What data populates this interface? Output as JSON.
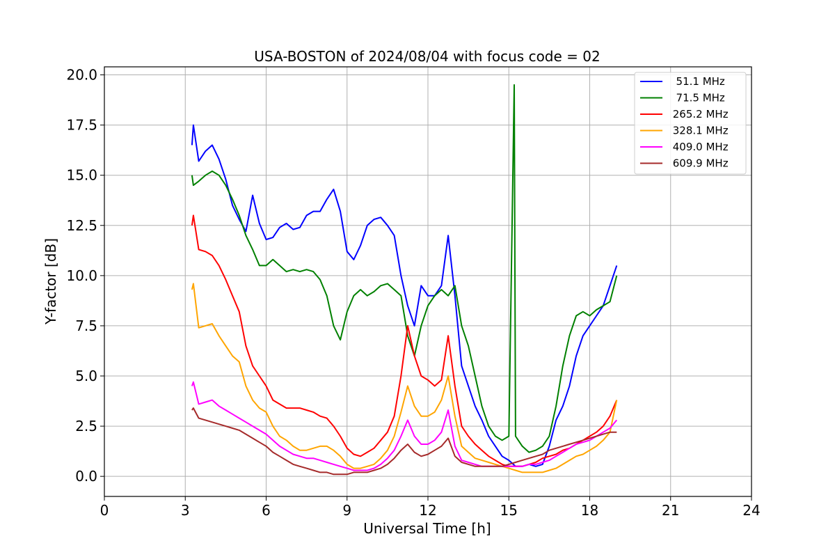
{
  "chart_data": {
    "type": "line",
    "title": "USA-BOSTON of 2024/08/04 with focus code = 02",
    "xlabel": "Universal Time [h]",
    "ylabel": "Y-factor [dB]",
    "xlim": [
      0,
      24
    ],
    "ylim": [
      -1,
      20.4
    ],
    "xticks": [
      0,
      3,
      6,
      9,
      12,
      15,
      18,
      21,
      24
    ],
    "xtick_labels": [
      "0",
      "3",
      "6",
      "9",
      "12",
      "15",
      "18",
      "21",
      "24"
    ],
    "yticks": [
      0,
      2.5,
      5,
      7.5,
      10,
      12.5,
      15,
      17.5,
      20
    ],
    "ytick_labels": [
      "0.0",
      "2.5",
      "5.0",
      "7.5",
      "10.0",
      "12.5",
      "15.0",
      "17.5",
      "20.0"
    ],
    "grid": true,
    "legend_position": "top-right",
    "series": [
      {
        "name": "  51.1 MHz",
        "color": "#0000ff",
        "x": [
          3.25,
          3.3,
          3.5,
          3.75,
          4.0,
          4.25,
          4.5,
          4.75,
          5.0,
          5.25,
          5.5,
          5.75,
          6.0,
          6.25,
          6.5,
          6.75,
          7.0,
          7.25,
          7.5,
          7.75,
          8.0,
          8.25,
          8.5,
          8.75,
          9.0,
          9.25,
          9.5,
          9.75,
          10.0,
          10.25,
          10.5,
          10.75,
          11.0,
          11.25,
          11.5,
          11.75,
          12.0,
          12.25,
          12.5,
          12.75,
          13.0,
          13.25,
          13.5,
          13.75,
          14.0,
          14.25,
          14.5,
          14.75,
          15.0,
          15.25,
          15.5,
          15.75,
          16.0,
          16.25,
          16.5,
          16.75,
          17.0,
          17.25,
          17.5,
          17.75,
          18.0,
          18.25,
          18.5,
          18.75,
          19.0
        ],
        "y": [
          16.5,
          17.5,
          15.7,
          16.2,
          16.5,
          15.8,
          14.8,
          13.5,
          12.8,
          12.2,
          14.0,
          12.6,
          11.8,
          11.9,
          12.4,
          12.6,
          12.3,
          12.4,
          13.0,
          13.2,
          13.2,
          13.8,
          14.3,
          13.2,
          11.2,
          10.8,
          11.5,
          12.5,
          12.8,
          12.9,
          12.5,
          12.0,
          10.0,
          8.5,
          7.5,
          9.5,
          9.0,
          9.0,
          9.5,
          12.0,
          9.0,
          5.5,
          4.5,
          3.5,
          2.8,
          2.0,
          1.5,
          1.0,
          0.8,
          0.5,
          0.5,
          0.6,
          0.5,
          0.6,
          1.5,
          2.8,
          3.5,
          4.5,
          6.0,
          7.0,
          7.5,
          8.0,
          8.5,
          9.5,
          10.5
        ]
      },
      {
        "name": "  71.5 MHz",
        "color": "#008000",
        "x": [
          3.25,
          3.3,
          3.5,
          3.75,
          4.0,
          4.25,
          4.5,
          4.75,
          5.0,
          5.25,
          5.5,
          5.75,
          6.0,
          6.25,
          6.5,
          6.75,
          7.0,
          7.25,
          7.5,
          7.75,
          8.0,
          8.25,
          8.5,
          8.75,
          9.0,
          9.25,
          9.5,
          9.75,
          10.0,
          10.25,
          10.5,
          10.75,
          11.0,
          11.25,
          11.5,
          11.75,
          12.0,
          12.25,
          12.5,
          12.75,
          13.0,
          13.25,
          13.5,
          13.75,
          14.0,
          14.25,
          14.5,
          14.75,
          15.0,
          15.2,
          15.25,
          15.5,
          15.75,
          16.0,
          16.25,
          16.5,
          16.75,
          17.0,
          17.25,
          17.5,
          17.75,
          18.0,
          18.25,
          18.5,
          18.75,
          19.0
        ],
        "y": [
          15.0,
          14.5,
          14.7,
          15.0,
          15.2,
          15.0,
          14.5,
          13.8,
          13.0,
          12.0,
          11.3,
          10.5,
          10.5,
          10.8,
          10.5,
          10.2,
          10.3,
          10.2,
          10.3,
          10.2,
          9.8,
          9.0,
          7.5,
          6.8,
          8.2,
          9.0,
          9.3,
          9.0,
          9.2,
          9.5,
          9.6,
          9.3,
          9.0,
          7.0,
          6.0,
          7.5,
          8.5,
          9.0,
          9.3,
          9.0,
          9.5,
          7.5,
          6.5,
          5.0,
          3.5,
          2.5,
          2.0,
          1.8,
          2.0,
          19.5,
          2.0,
          1.5,
          1.2,
          1.3,
          1.5,
          2.0,
          3.5,
          5.5,
          7.0,
          8.0,
          8.2,
          8.0,
          8.3,
          8.5,
          8.7,
          10.0
        ]
      },
      {
        "name": " 265.2 MHz",
        "color": "#ff0000",
        "x": [
          3.25,
          3.3,
          3.5,
          3.75,
          4.0,
          4.25,
          4.5,
          4.75,
          5.0,
          5.25,
          5.5,
          5.75,
          6.0,
          6.25,
          6.5,
          6.75,
          7.0,
          7.25,
          7.5,
          7.75,
          8.0,
          8.25,
          8.5,
          8.75,
          9.0,
          9.25,
          9.5,
          9.75,
          10.0,
          10.25,
          10.5,
          10.75,
          11.0,
          11.25,
          11.5,
          11.75,
          12.0,
          12.25,
          12.5,
          12.75,
          13.0,
          13.25,
          13.5,
          13.75,
          14.0,
          14.25,
          14.5,
          14.75,
          15.0,
          15.25,
          15.5,
          15.75,
          16.0,
          16.25,
          16.5,
          16.75,
          17.0,
          17.25,
          17.5,
          17.75,
          18.0,
          18.25,
          18.5,
          18.75,
          19.0
        ],
        "y": [
          12.5,
          13.0,
          11.3,
          11.2,
          11.0,
          10.5,
          9.8,
          9.0,
          8.2,
          6.5,
          5.5,
          5.0,
          4.5,
          3.8,
          3.6,
          3.4,
          3.4,
          3.4,
          3.3,
          3.2,
          3.0,
          2.9,
          2.5,
          2.0,
          1.4,
          1.1,
          1.0,
          1.2,
          1.4,
          1.8,
          2.2,
          3.0,
          5.0,
          7.5,
          6.0,
          5.0,
          4.8,
          4.5,
          4.8,
          7.0,
          4.5,
          2.5,
          2.0,
          1.6,
          1.3,
          1.0,
          0.8,
          0.6,
          0.5,
          0.5,
          0.5,
          0.6,
          0.7,
          0.9,
          1.0,
          1.1,
          1.3,
          1.4,
          1.6,
          1.8,
          2.0,
          2.2,
          2.5,
          3.0,
          3.8
        ]
      },
      {
        "name": " 328.1 MHz",
        "color": "#ffa500",
        "x": [
          3.25,
          3.3,
          3.5,
          3.75,
          4.0,
          4.25,
          4.5,
          4.75,
          5.0,
          5.25,
          5.5,
          5.75,
          6.0,
          6.25,
          6.5,
          6.75,
          7.0,
          7.25,
          7.5,
          7.75,
          8.0,
          8.25,
          8.5,
          8.75,
          9.0,
          9.25,
          9.5,
          9.75,
          10.0,
          10.25,
          10.5,
          10.75,
          11.0,
          11.25,
          11.5,
          11.75,
          12.0,
          12.25,
          12.5,
          12.75,
          13.0,
          13.25,
          13.5,
          13.75,
          14.0,
          14.25,
          14.5,
          14.75,
          15.0,
          15.25,
          15.5,
          15.75,
          16.0,
          16.25,
          16.5,
          16.75,
          17.0,
          17.25,
          17.5,
          17.75,
          18.0,
          18.25,
          18.5,
          18.75,
          19.0
        ],
        "y": [
          9.3,
          9.6,
          7.4,
          7.5,
          7.6,
          7.0,
          6.5,
          6.0,
          5.7,
          4.5,
          3.8,
          3.4,
          3.2,
          2.5,
          2.0,
          1.8,
          1.5,
          1.3,
          1.3,
          1.4,
          1.5,
          1.5,
          1.3,
          1.0,
          0.6,
          0.4,
          0.4,
          0.5,
          0.6,
          0.9,
          1.3,
          2.0,
          3.2,
          4.5,
          3.5,
          3.0,
          3.0,
          3.2,
          3.8,
          5.0,
          3.0,
          1.5,
          1.2,
          0.9,
          0.8,
          0.7,
          0.6,
          0.5,
          0.4,
          0.3,
          0.2,
          0.2,
          0.2,
          0.2,
          0.3,
          0.4,
          0.6,
          0.8,
          1.0,
          1.1,
          1.3,
          1.5,
          1.8,
          2.2,
          3.8
        ]
      },
      {
        "name": " 409.0 MHz",
        "color": "#ff00ff",
        "x": [
          3.25,
          3.3,
          3.5,
          3.75,
          4.0,
          4.25,
          4.5,
          4.75,
          5.0,
          5.25,
          5.5,
          5.75,
          6.0,
          6.25,
          6.5,
          6.75,
          7.0,
          7.25,
          7.5,
          7.75,
          8.0,
          8.25,
          8.5,
          8.75,
          9.0,
          9.25,
          9.5,
          9.75,
          10.0,
          10.25,
          10.5,
          10.75,
          11.0,
          11.25,
          11.5,
          11.75,
          12.0,
          12.25,
          12.5,
          12.75,
          13.0,
          13.25,
          13.5,
          13.75,
          14.0,
          14.25,
          14.5,
          14.75,
          15.0,
          15.25,
          15.5,
          15.75,
          16.0,
          16.25,
          16.5,
          16.75,
          17.0,
          17.25,
          17.5,
          17.75,
          18.0,
          18.25,
          18.5,
          18.75,
          19.0
        ],
        "y": [
          4.5,
          4.7,
          3.6,
          3.7,
          3.8,
          3.5,
          3.3,
          3.1,
          2.9,
          2.7,
          2.5,
          2.3,
          2.1,
          1.8,
          1.5,
          1.3,
          1.1,
          1.0,
          0.9,
          0.9,
          0.8,
          0.7,
          0.6,
          0.5,
          0.4,
          0.3,
          0.3,
          0.3,
          0.4,
          0.6,
          0.9,
          1.3,
          2.0,
          2.8,
          2.0,
          1.6,
          1.6,
          1.8,
          2.2,
          3.3,
          1.5,
          0.8,
          0.7,
          0.6,
          0.5,
          0.5,
          0.5,
          0.5,
          0.5,
          0.5,
          0.5,
          0.6,
          0.6,
          0.7,
          0.8,
          1.0,
          1.2,
          1.4,
          1.6,
          1.7,
          1.8,
          2.0,
          2.2,
          2.4,
          2.8
        ]
      },
      {
        "name": " 609.9 MHz",
        "color": "#a52a2a",
        "x": [
          3.25,
          3.3,
          3.5,
          3.75,
          4.0,
          4.25,
          4.5,
          4.75,
          5.0,
          5.25,
          5.5,
          5.75,
          6.0,
          6.25,
          6.5,
          6.75,
          7.0,
          7.25,
          7.5,
          7.75,
          8.0,
          8.25,
          8.5,
          8.75,
          9.0,
          9.25,
          9.5,
          9.75,
          10.0,
          10.25,
          10.5,
          10.75,
          11.0,
          11.25,
          11.5,
          11.75,
          12.0,
          12.25,
          12.5,
          12.75,
          13.0,
          13.25,
          13.5,
          13.75,
          14.0,
          14.25,
          14.5,
          14.75,
          15.0,
          15.25,
          15.5,
          15.75,
          16.0,
          16.25,
          16.5,
          16.75,
          17.0,
          17.25,
          17.5,
          17.75,
          18.0,
          18.25,
          18.5,
          18.75,
          19.0
        ],
        "y": [
          3.3,
          3.4,
          2.9,
          2.8,
          2.7,
          2.6,
          2.5,
          2.4,
          2.3,
          2.1,
          1.9,
          1.7,
          1.5,
          1.2,
          1.0,
          0.8,
          0.6,
          0.5,
          0.4,
          0.3,
          0.2,
          0.2,
          0.1,
          0.1,
          0.1,
          0.2,
          0.2,
          0.2,
          0.3,
          0.4,
          0.6,
          0.9,
          1.3,
          1.6,
          1.2,
          1.0,
          1.1,
          1.3,
          1.5,
          1.9,
          1.0,
          0.7,
          0.6,
          0.5,
          0.5,
          0.5,
          0.5,
          0.5,
          0.6,
          0.7,
          0.8,
          0.9,
          1.0,
          1.1,
          1.3,
          1.4,
          1.5,
          1.6,
          1.7,
          1.8,
          1.9,
          2.0,
          2.1,
          2.2,
          2.2
        ]
      }
    ]
  }
}
